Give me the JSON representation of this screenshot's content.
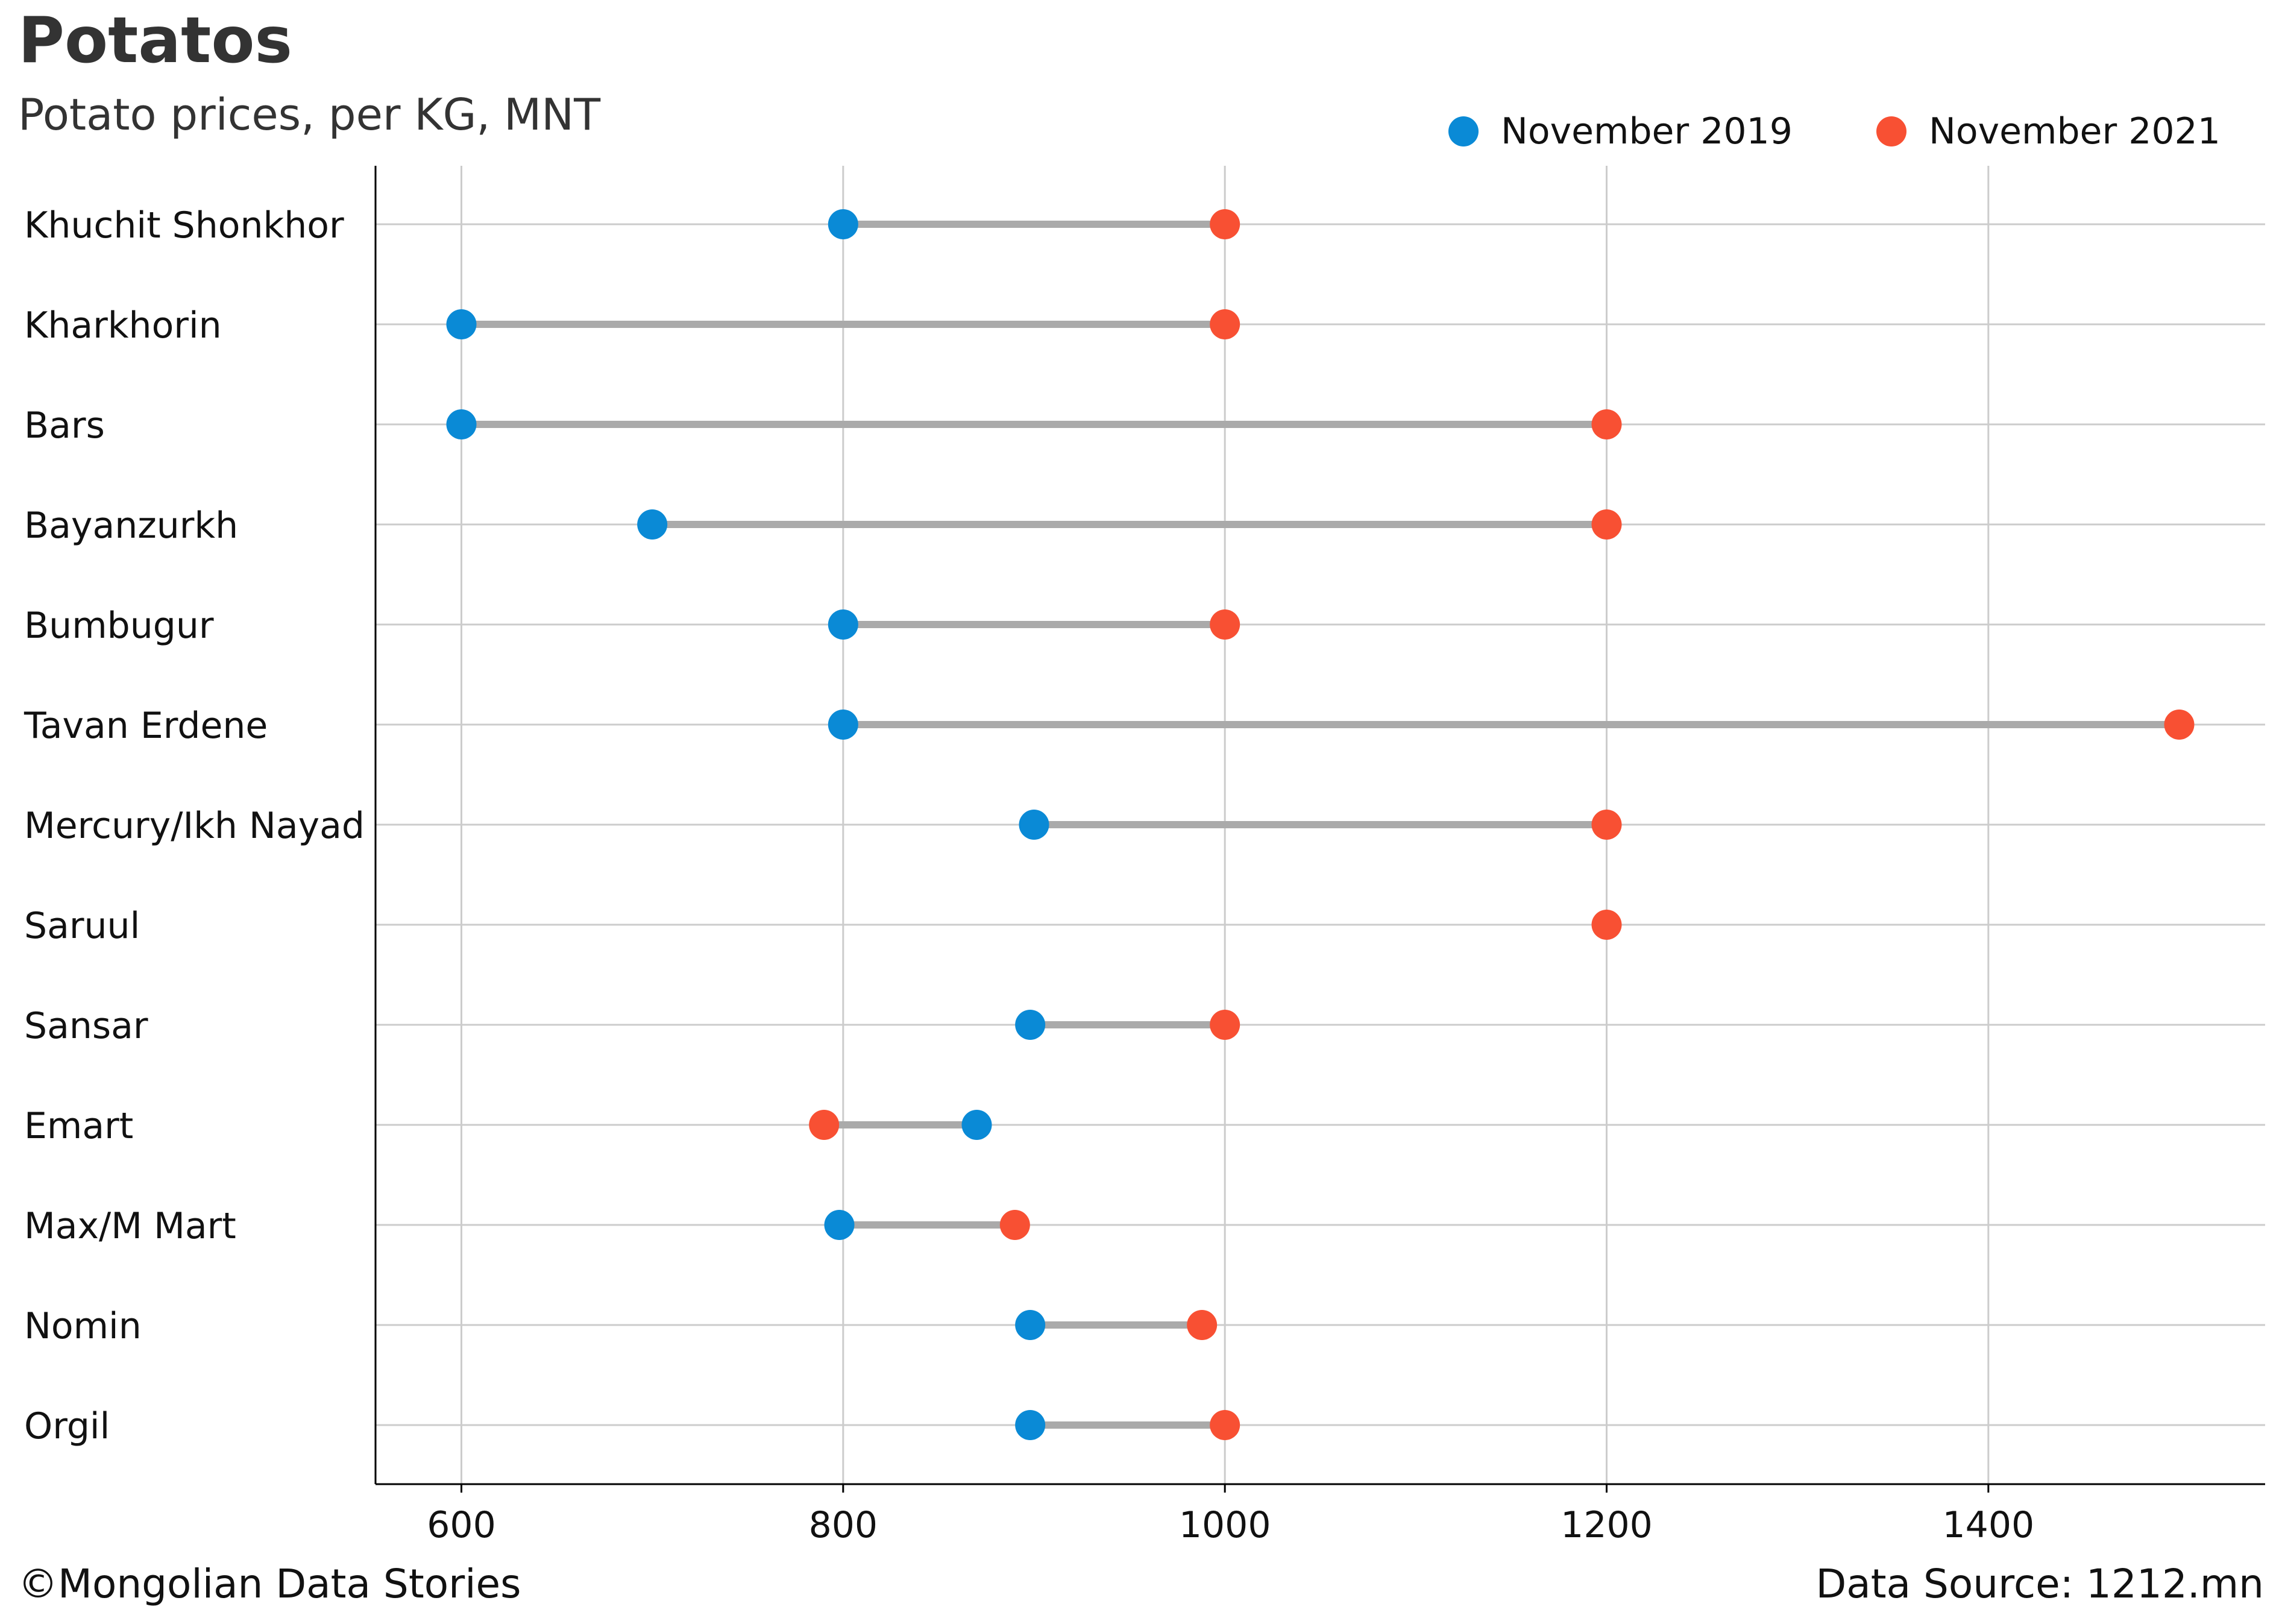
{
  "chart_data": {
    "type": "dumbbell",
    "title": "Potatos",
    "subtitle": "Potato prices, per KG, MNT",
    "categories": [
      "Khuchit Shonkhor",
      "Kharkhorin",
      "Bars",
      "Bayanzurkh",
      "Bumbugur",
      "Tavan Erdene",
      "Mercury/Ikh Nayad",
      "Saruul",
      "Sansar",
      "Emart",
      "Max/M Mart",
      "Nomin",
      "Orgil"
    ],
    "series": [
      {
        "name": "November 2019",
        "color": "#0a8ad6",
        "values": [
          800,
          600,
          600,
          700,
          800,
          800,
          900,
          null,
          898,
          870,
          798,
          898,
          898
        ]
      },
      {
        "name": "November 2021",
        "color": "#f85033",
        "values": [
          1000,
          1000,
          1200,
          1200,
          1000,
          1500,
          1200,
          1200,
          1000,
          790,
          890,
          988,
          1000
        ]
      }
    ],
    "connector_color": "#aaaaaa",
    "xlim": [
      555,
      1545
    ],
    "xticks": [
      "600",
      "800",
      "1000",
      "1200",
      "1400"
    ],
    "grid": true,
    "legend_position": "top-right"
  },
  "footer": {
    "credit": "©Mongolian Data Stories",
    "source": "Data Source: 1212.mn"
  }
}
